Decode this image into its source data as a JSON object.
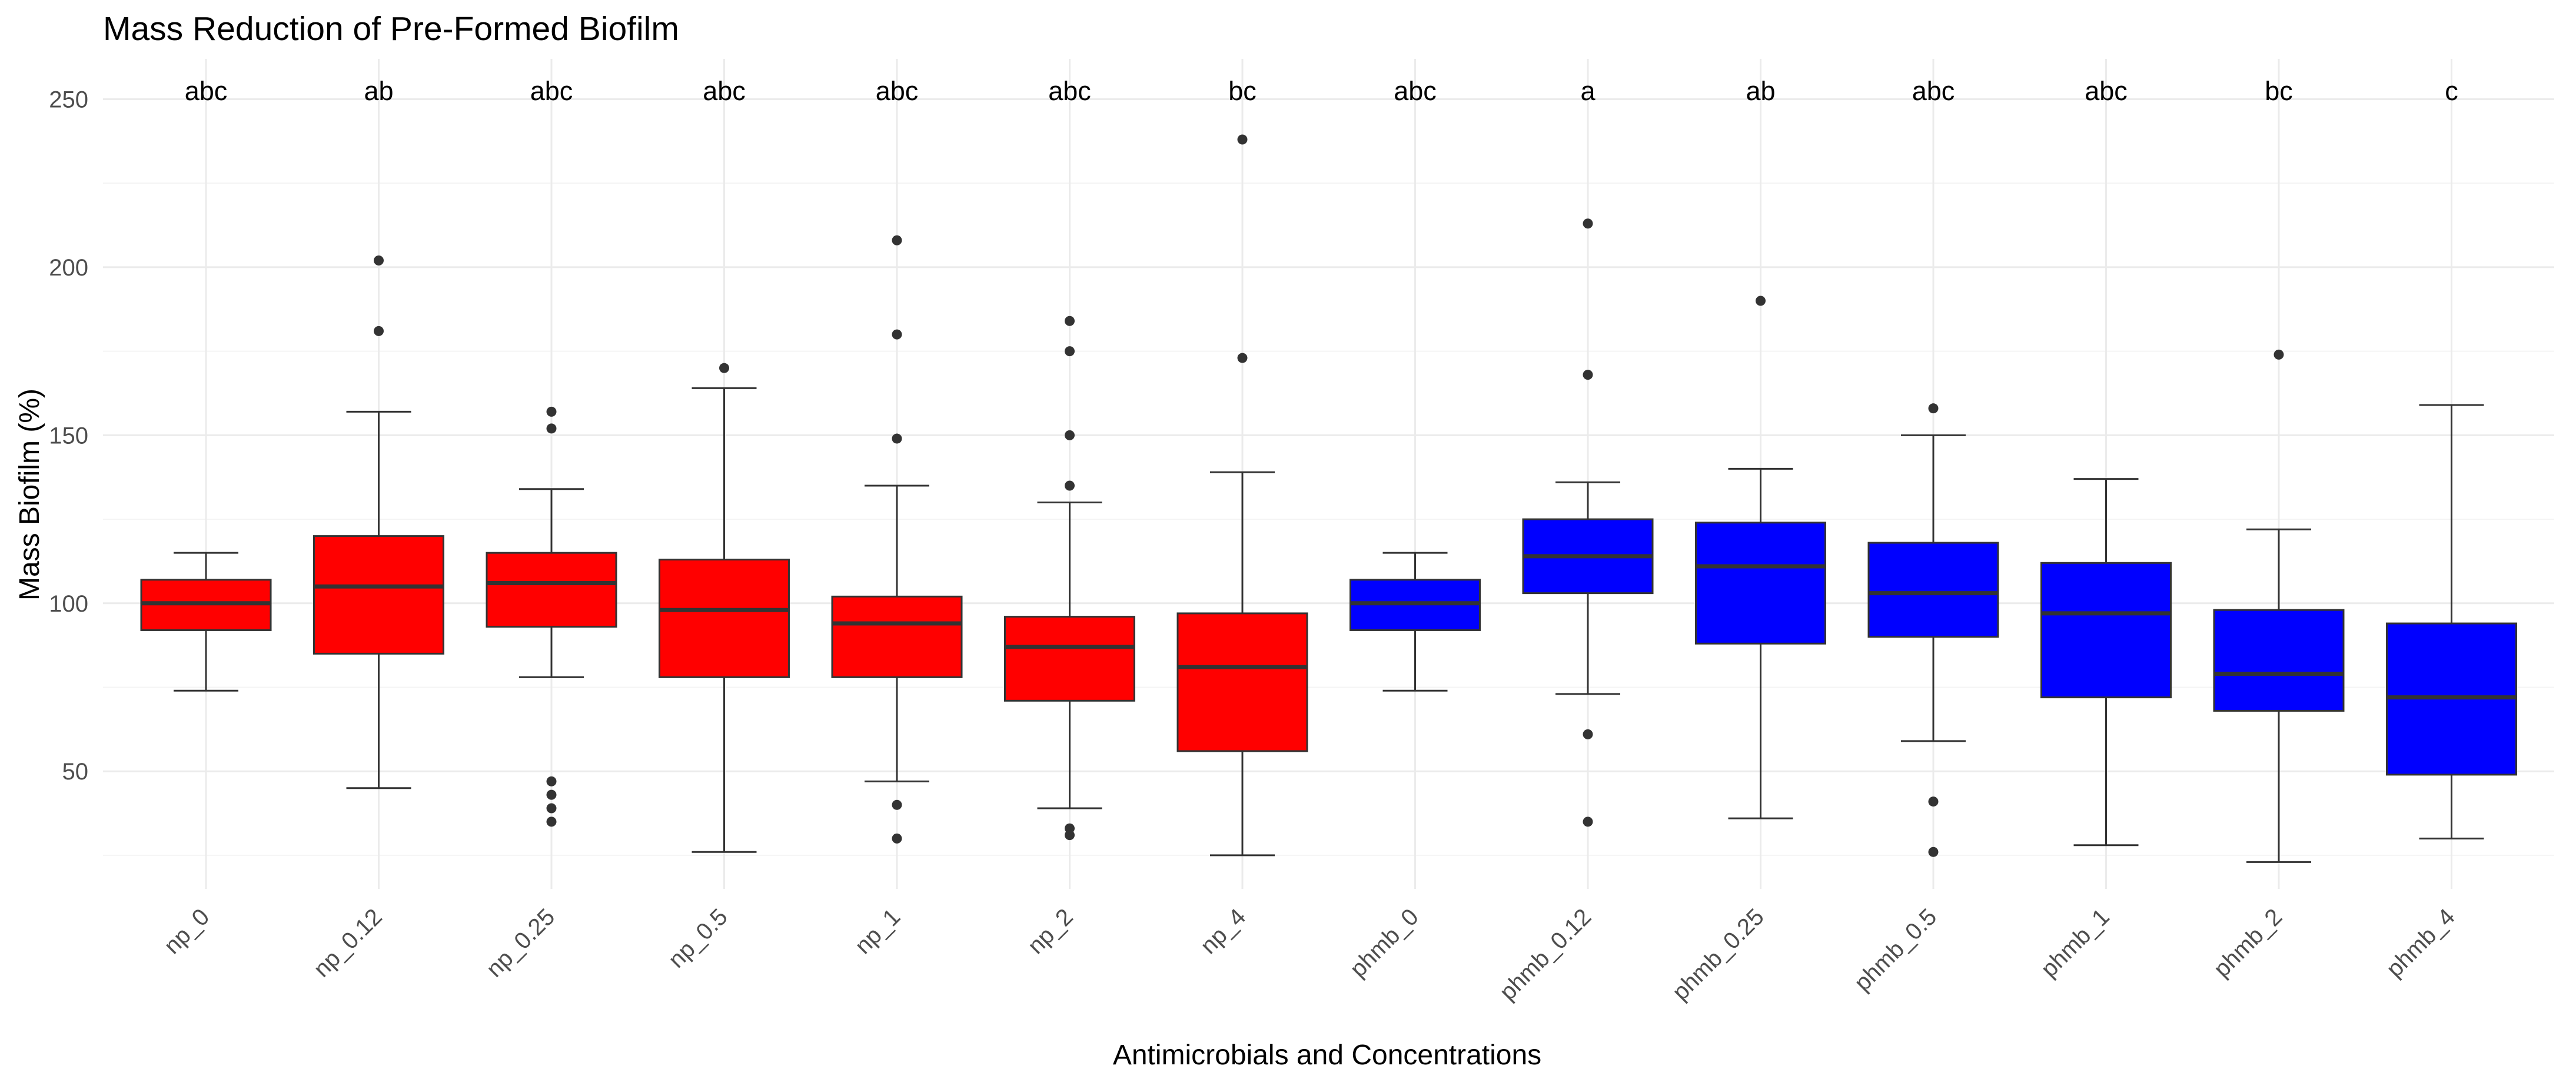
{
  "chart_data": {
    "type": "boxplot",
    "title": "Mass Reduction of Pre-Formed Biofilm",
    "xlabel": "Antimicrobials and Concentrations",
    "ylabel": "Mass Biofilm (%)",
    "ylim": [
      15,
      262
    ],
    "yticks": [
      50,
      100,
      150,
      200,
      250
    ],
    "colors": {
      "np": "#ff0000",
      "phmb": "#0000ff"
    },
    "groups": [
      {
        "label": "np_0",
        "letter": "abc",
        "series": "np",
        "whisker_low": 74,
        "q1": 92,
        "median": 100,
        "q3": 107,
        "whisker_high": 115,
        "outliers": []
      },
      {
        "label": "np_0.12",
        "letter": "ab",
        "series": "np",
        "whisker_low": 45,
        "q1": 85,
        "median": 105,
        "q3": 120,
        "whisker_high": 157,
        "outliers": [
          181,
          202
        ]
      },
      {
        "label": "np_0.25",
        "letter": "abc",
        "series": "np",
        "whisker_low": 78,
        "q1": 93,
        "median": 106,
        "q3": 115,
        "whisker_high": 134,
        "outliers": [
          152,
          157,
          47,
          43,
          39,
          35
        ]
      },
      {
        "label": "np_0.5",
        "letter": "abc",
        "series": "np",
        "whisker_low": 26,
        "q1": 78,
        "median": 98,
        "q3": 113,
        "whisker_high": 164,
        "outliers": [
          170
        ]
      },
      {
        "label": "np_1",
        "letter": "abc",
        "series": "np",
        "whisker_low": 47,
        "q1": 78,
        "median": 94,
        "q3": 102,
        "whisker_high": 135,
        "outliers": [
          149,
          180,
          208,
          40,
          30
        ]
      },
      {
        "label": "np_2",
        "letter": "abc",
        "series": "np",
        "whisker_low": 39,
        "q1": 71,
        "median": 87,
        "q3": 96,
        "whisker_high": 130,
        "outliers": [
          135,
          150,
          175,
          184,
          33,
          31
        ]
      },
      {
        "label": "np_4",
        "letter": "bc",
        "series": "np",
        "whisker_low": 25,
        "q1": 56,
        "median": 81,
        "q3": 97,
        "whisker_high": 139,
        "outliers": [
          173,
          238
        ]
      },
      {
        "label": "phmb_0",
        "letter": "abc",
        "series": "phmb",
        "whisker_low": 74,
        "q1": 92,
        "median": 100,
        "q3": 107,
        "whisker_high": 115,
        "outliers": []
      },
      {
        "label": "phmb_0.12",
        "letter": "a",
        "series": "phmb",
        "whisker_low": 73,
        "q1": 103,
        "median": 114,
        "q3": 125,
        "whisker_high": 136,
        "outliers": [
          168,
          213,
          61,
          35
        ]
      },
      {
        "label": "phmb_0.25",
        "letter": "ab",
        "series": "phmb",
        "whisker_low": 36,
        "q1": 88,
        "median": 111,
        "q3": 124,
        "whisker_high": 140,
        "outliers": [
          190
        ]
      },
      {
        "label": "phmb_0.5",
        "letter": "abc",
        "series": "phmb",
        "whisker_low": 59,
        "q1": 90,
        "median": 103,
        "q3": 118,
        "whisker_high": 150,
        "outliers": [
          158,
          41,
          26
        ]
      },
      {
        "label": "phmb_1",
        "letter": "abc",
        "series": "phmb",
        "whisker_low": 28,
        "q1": 72,
        "median": 97,
        "q3": 112,
        "whisker_high": 137,
        "outliers": []
      },
      {
        "label": "phmb_2",
        "letter": "bc",
        "series": "phmb",
        "whisker_low": 23,
        "q1": 68,
        "median": 79,
        "q3": 98,
        "whisker_high": 122,
        "outliers": [
          174
        ]
      },
      {
        "label": "phmb_4",
        "letter": "c",
        "series": "phmb",
        "whisker_low": 30,
        "q1": 49,
        "median": 72,
        "q3": 94,
        "whisker_high": 159,
        "outliers": []
      }
    ],
    "grid": true,
    "legend": "none"
  }
}
